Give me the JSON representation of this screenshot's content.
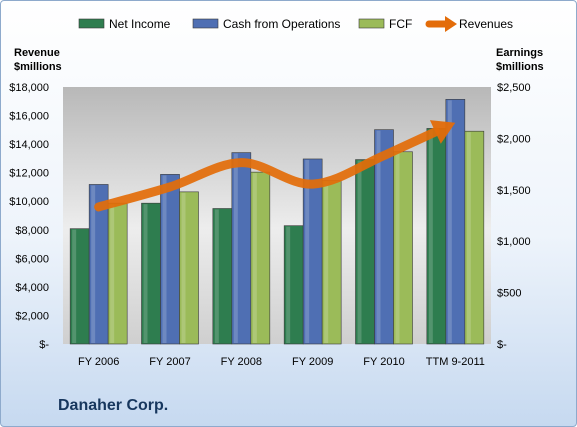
{
  "chart_data": {
    "type": "bar",
    "categories": [
      "FY 2006",
      "FY 2007",
      "FY 2008",
      "FY 2009",
      "FY 2010",
      "TTM 9-2011"
    ],
    "series": [
      {
        "name": "Net Income",
        "axis": "right",
        "color": "#2e7d4f",
        "values": [
          1122,
          1370,
          1318,
          1151,
          1794,
          2097
        ]
      },
      {
        "name": "Cash from Operations",
        "axis": "right",
        "color": "#4f6fb3",
        "values": [
          1552,
          1650,
          1862,
          1800,
          2085,
          2380
        ]
      },
      {
        "name": "FCF",
        "axis": "right",
        "color": "#9bbb59",
        "values": [
          1370,
          1480,
          1672,
          1590,
          1870,
          2070
        ]
      },
      {
        "name": "Revenues",
        "axis": "left",
        "type": "line",
        "color": "#e36c09",
        "values": [
          9600,
          11000,
          12700,
          11200,
          13200,
          15500
        ]
      }
    ],
    "left_axis": {
      "title_lines": [
        "Revenue",
        "$millions"
      ],
      "ylim": [
        0,
        18000
      ],
      "ticks": [
        "$-",
        "$2,000",
        "$4,000",
        "$6,000",
        "$8,000",
        "$10,000",
        "$12,000",
        "$14,000",
        "$16,000",
        "$18,000"
      ]
    },
    "right_axis": {
      "title_lines": [
        "Earnings",
        "$millions"
      ],
      "ylim": [
        0,
        2500
      ],
      "ticks": [
        "$-",
        "$500",
        "$1,000",
        "$1,500",
        "$2,000",
        "$2,500"
      ]
    },
    "legend_position": "top",
    "grid": false
  },
  "company": "Danaher Corp."
}
